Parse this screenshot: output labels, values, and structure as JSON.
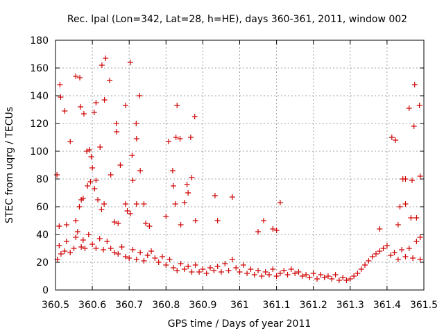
{
  "chart_data": {
    "type": "scatter",
    "title": "Rec. lpal (Lon=342, Lat=28, h=HE), days 360-361, 2011, window 002",
    "xlabel": "GPS time / Days of year 2011",
    "ylabel": "STEC from uqrg / TECUs",
    "xlim": [
      360.5,
      361.5
    ],
    "ylim": [
      0,
      180
    ],
    "xticks": [
      360.5,
      360.6,
      360.7,
      360.8,
      360.9,
      361.0,
      361.1,
      361.2,
      361.3,
      361.4,
      361.5
    ],
    "xtick_labels": [
      "360.5",
      "360.6",
      "360.7",
      "360.8",
      "360.9",
      "361",
      "361.1",
      "361.2",
      "361.3",
      "361.4",
      "361.5"
    ],
    "yticks": [
      0,
      20,
      40,
      60,
      80,
      100,
      120,
      140,
      160,
      180
    ],
    "ytick_labels": [
      "0",
      "20",
      "40",
      "60",
      "80",
      "100",
      "120",
      "140",
      "160",
      "180"
    ],
    "grid": true,
    "marker": "+",
    "color": "#d00000",
    "points": [
      [
        360.504,
        83
      ],
      [
        360.512,
        148
      ],
      [
        360.514,
        139
      ],
      [
        360.525,
        129
      ],
      [
        360.54,
        107
      ],
      [
        360.555,
        154
      ],
      [
        360.566,
        153
      ],
      [
        360.568,
        132
      ],
      [
        360.577,
        127
      ],
      [
        360.585,
        100
      ],
      [
        360.592,
        101
      ],
      [
        360.597,
        96
      ],
      [
        360.605,
        128
      ],
      [
        360.61,
        135
      ],
      [
        360.621,
        103
      ],
      [
        360.626,
        162
      ],
      [
        360.633,
        137
      ],
      [
        360.636,
        167
      ],
      [
        360.647,
        151
      ],
      [
        360.665,
        120
      ],
      [
        360.666,
        114
      ],
      [
        360.676,
        90
      ],
      [
        360.69,
        133
      ],
      [
        360.703,
        164
      ],
      [
        360.708,
        97
      ],
      [
        360.719,
        120
      ],
      [
        360.72,
        109
      ],
      [
        360.728,
        140
      ],
      [
        360.73,
        86
      ],
      [
        360.74,
        62
      ],
      [
        360.807,
        107
      ],
      [
        360.818,
        86
      ],
      [
        360.827,
        110
      ],
      [
        360.83,
        133
      ],
      [
        360.838,
        109
      ],
      [
        360.857,
        76
      ],
      [
        360.867,
        110
      ],
      [
        360.878,
        125
      ],
      [
        360.933,
        68
      ],
      [
        360.94,
        50
      ],
      [
        360.98,
        67
      ],
      [
        361.065,
        50
      ],
      [
        361.11,
        63
      ],
      [
        361.413,
        110
      ],
      [
        361.423,
        108
      ],
      [
        361.443,
        80
      ],
      [
        361.45,
        80
      ],
      [
        361.46,
        131
      ],
      [
        361.468,
        79
      ],
      [
        361.473,
        118
      ],
      [
        361.475,
        148
      ],
      [
        361.488,
        133
      ],
      [
        361.49,
        82
      ],
      [
        360.51,
        46
      ],
      [
        360.53,
        47
      ],
      [
        360.555,
        50
      ],
      [
        360.565,
        60
      ],
      [
        360.57,
        65
      ],
      [
        360.575,
        66
      ],
      [
        360.587,
        75
      ],
      [
        360.595,
        78
      ],
      [
        360.6,
        88
      ],
      [
        360.606,
        73
      ],
      [
        360.61,
        79
      ],
      [
        360.615,
        65
      ],
      [
        360.625,
        58
      ],
      [
        360.632,
        62
      ],
      [
        360.65,
        83
      ],
      [
        360.66,
        49
      ],
      [
        360.67,
        48
      ],
      [
        360.69,
        62
      ],
      [
        360.695,
        57
      ],
      [
        360.703,
        55
      ],
      [
        360.71,
        79
      ],
      [
        360.72,
        62
      ],
      [
        360.745,
        48
      ],
      [
        360.755,
        46
      ],
      [
        360.8,
        53
      ],
      [
        360.82,
        75
      ],
      [
        360.825,
        62
      ],
      [
        360.84,
        47
      ],
      [
        360.85,
        63
      ],
      [
        360.86,
        70
      ],
      [
        360.87,
        81
      ],
      [
        360.88,
        50
      ],
      [
        361.05,
        42
      ],
      [
        361.09,
        44
      ],
      [
        361.1,
        43
      ],
      [
        361.38,
        44
      ],
      [
        361.43,
        47
      ],
      [
        361.435,
        60
      ],
      [
        361.45,
        62
      ],
      [
        361.465,
        52
      ],
      [
        361.48,
        52
      ],
      [
        361.49,
        38
      ],
      [
        360.505,
        22
      ],
      [
        360.51,
        32
      ],
      [
        360.515,
        26
      ],
      [
        360.525,
        28
      ],
      [
        360.53,
        35
      ],
      [
        360.54,
        27
      ],
      [
        360.55,
        30
      ],
      [
        360.555,
        38
      ],
      [
        360.56,
        42
      ],
      [
        360.57,
        31
      ],
      [
        360.575,
        36
      ],
      [
        360.58,
        30
      ],
      [
        360.59,
        40
      ],
      [
        360.6,
        33
      ],
      [
        360.61,
        30
      ],
      [
        360.62,
        37
      ],
      [
        360.63,
        29
      ],
      [
        360.64,
        35
      ],
      [
        360.65,
        30
      ],
      [
        360.66,
        27
      ],
      [
        360.67,
        26
      ],
      [
        360.68,
        31
      ],
      [
        360.69,
        24
      ],
      [
        360.7,
        23
      ],
      [
        360.71,
        29
      ],
      [
        360.72,
        22
      ],
      [
        360.73,
        27
      ],
      [
        360.74,
        21
      ],
      [
        360.75,
        25
      ],
      [
        360.76,
        28
      ],
      [
        360.77,
        23
      ],
      [
        360.78,
        20
      ],
      [
        360.79,
        24
      ],
      [
        360.8,
        18
      ],
      [
        360.81,
        22
      ],
      [
        360.82,
        16
      ],
      [
        360.83,
        14
      ],
      [
        360.84,
        19
      ],
      [
        360.85,
        15
      ],
      [
        360.86,
        17
      ],
      [
        360.87,
        13
      ],
      [
        360.88,
        18
      ],
      [
        360.89,
        13
      ],
      [
        360.9,
        15
      ],
      [
        360.91,
        12
      ],
      [
        360.92,
        16
      ],
      [
        360.93,
        14
      ],
      [
        360.94,
        17
      ],
      [
        360.95,
        13
      ],
      [
        360.96,
        19
      ],
      [
        360.97,
        14
      ],
      [
        360.98,
        22
      ],
      [
        360.99,
        16
      ],
      [
        361.0,
        13
      ],
      [
        361.01,
        18
      ],
      [
        361.02,
        12
      ],
      [
        361.03,
        15
      ],
      [
        361.04,
        11
      ],
      [
        361.05,
        14
      ],
      [
        361.06,
        10
      ],
      [
        361.07,
        13
      ],
      [
        361.08,
        11
      ],
      [
        361.09,
        15
      ],
      [
        361.1,
        10
      ],
      [
        361.11,
        12
      ],
      [
        361.12,
        14
      ],
      [
        361.13,
        11
      ],
      [
        361.14,
        15
      ],
      [
        361.15,
        12
      ],
      [
        361.16,
        13
      ],
      [
        361.17,
        10
      ],
      [
        361.18,
        11
      ],
      [
        361.19,
        9
      ],
      [
        361.2,
        12
      ],
      [
        361.21,
        8
      ],
      [
        361.22,
        11
      ],
      [
        361.23,
        9
      ],
      [
        361.24,
        10
      ],
      [
        361.25,
        8
      ],
      [
        361.26,
        11
      ],
      [
        361.27,
        7
      ],
      [
        361.28,
        9
      ],
      [
        361.29,
        7
      ],
      [
        361.3,
        8
      ],
      [
        361.31,
        10
      ],
      [
        361.32,
        12
      ],
      [
        361.33,
        15
      ],
      [
        361.34,
        18
      ],
      [
        361.35,
        21
      ],
      [
        361.36,
        24
      ],
      [
        361.37,
        26
      ],
      [
        361.38,
        28
      ],
      [
        361.39,
        30
      ],
      [
        361.4,
        32
      ],
      [
        361.41,
        25
      ],
      [
        361.42,
        27
      ],
      [
        361.43,
        22
      ],
      [
        361.44,
        29
      ],
      [
        361.45,
        24
      ],
      [
        361.46,
        30
      ],
      [
        361.47,
        23
      ],
      [
        361.48,
        35
      ],
      [
        361.49,
        22
      ]
    ]
  }
}
